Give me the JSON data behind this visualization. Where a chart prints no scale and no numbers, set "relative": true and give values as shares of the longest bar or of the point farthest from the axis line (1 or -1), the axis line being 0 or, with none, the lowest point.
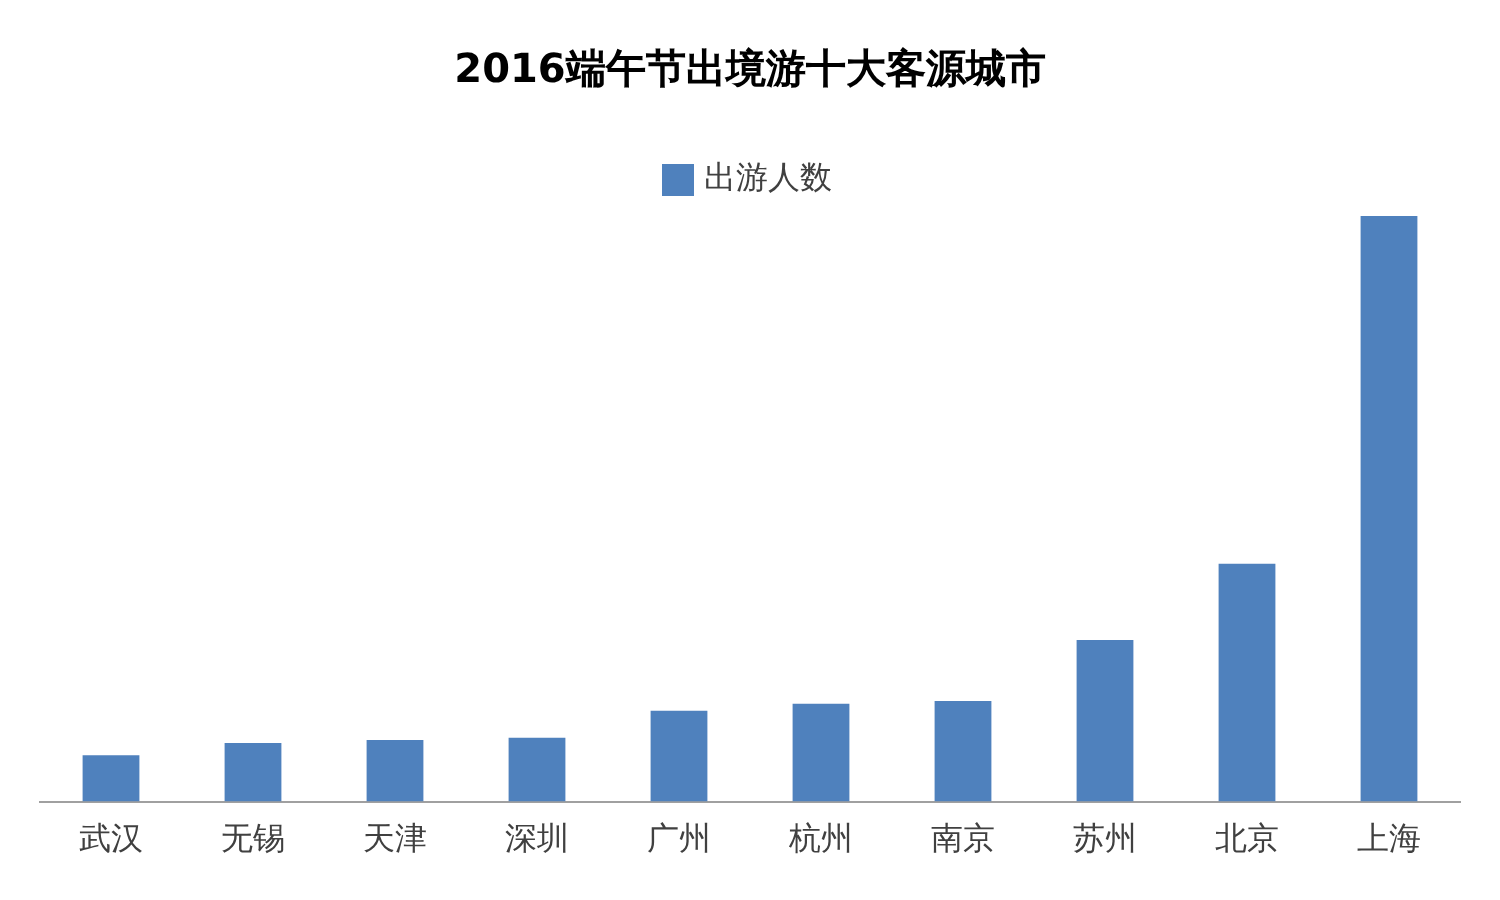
{
  "chart_data": {
    "type": "bar",
    "title": "2016端午节出境游十大客源城市",
    "categories": [
      "武汉",
      "无锡",
      "天津",
      "深圳",
      "广州",
      "杭州",
      "南京",
      "苏州",
      "北京",
      "上海"
    ],
    "series": [
      {
        "name": "出游人数",
        "color": "#4f81bd",
        "values": [
          0.079,
          0.1,
          0.105,
          0.109,
          0.155,
          0.167,
          0.172,
          0.276,
          0.406,
          1
        ]
      }
    ],
    "relative": true,
    "legend": "top",
    "grid": false
  }
}
